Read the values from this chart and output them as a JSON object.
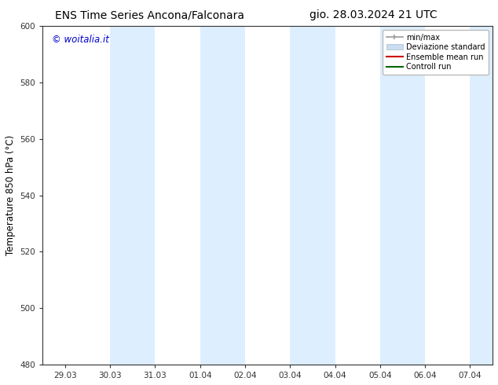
{
  "title_left": "ENS Time Series Ancona/Falconara",
  "title_right": "gio. 28.03.2024 21 UTC",
  "ylabel": "Temperature 850 hPa (°C)",
  "watermark": "© woitalia.it",
  "watermark_color": "#0000cc",
  "ylim": [
    480,
    600
  ],
  "yticks": [
    480,
    500,
    520,
    540,
    560,
    580,
    600
  ],
  "xtick_labels": [
    "29.03",
    "30.03",
    "31.03",
    "01.04",
    "02.04",
    "03.04",
    "04.04",
    "05.04",
    "06.04",
    "07.04"
  ],
  "background_color": "#ffffff",
  "plot_bg_color": "#ffffff",
  "shaded_bands": [
    {
      "xstart": 1,
      "xend": 2,
      "color": "#ddeeff"
    },
    {
      "xstart": 3,
      "xend": 4,
      "color": "#ddeeff"
    },
    {
      "xstart": 5,
      "xend": 6,
      "color": "#ddeeff"
    },
    {
      "xstart": 7,
      "xend": 8,
      "color": "#ddeeff"
    },
    {
      "xstart": 9,
      "xend": 9.5,
      "color": "#ddeeff"
    }
  ],
  "legend_items": [
    {
      "label": "min/max",
      "color": "#aaaaaa",
      "lw": 1.5
    },
    {
      "label": "Deviazione standard",
      "color": "#c8ddf0",
      "lw": 8
    },
    {
      "label": "Ensemble mean run",
      "color": "#cc0000",
      "lw": 1.5
    },
    {
      "label": "Controll run",
      "color": "#006600",
      "lw": 1.5
    }
  ],
  "title_fontsize": 10,
  "tick_fontsize": 7.5,
  "ylabel_fontsize": 8.5,
  "watermark_fontsize": 8.5,
  "axis_color": "#333333",
  "n_xpoints": 10,
  "figwidth": 6.34,
  "figheight": 4.9,
  "dpi": 100
}
